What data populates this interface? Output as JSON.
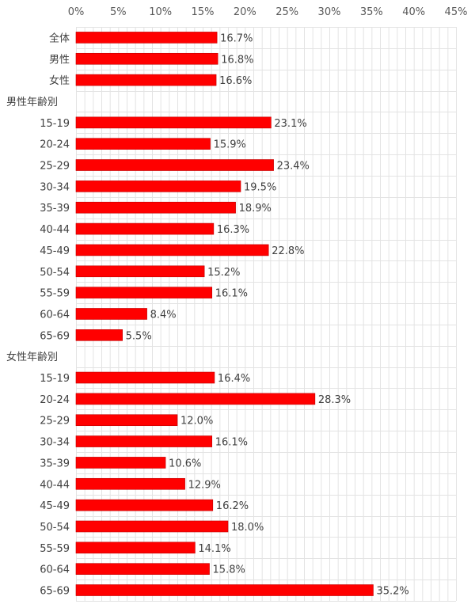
{
  "chart_data": {
    "type": "bar",
    "orientation": "horizontal",
    "categories": [
      "全体",
      "男性",
      "女性",
      "男性年齢別",
      "15-19",
      "20-24",
      "25-29",
      "30-34",
      "35-39",
      "40-44",
      "45-49",
      "50-54",
      "55-59",
      "60-64",
      "65-69",
      "女性年齢別",
      "15-19",
      "20-24",
      "25-29",
      "30-34",
      "35-39",
      "40-44",
      "45-49",
      "50-54",
      "55-59",
      "60-64",
      "65-69"
    ],
    "values": [
      16.7,
      16.8,
      16.6,
      null,
      23.1,
      15.9,
      23.4,
      19.5,
      18.9,
      16.3,
      22.8,
      15.2,
      16.1,
      8.4,
      5.5,
      null,
      16.4,
      28.3,
      12.0,
      16.1,
      10.6,
      12.9,
      16.2,
      18.0,
      14.1,
      15.8,
      35.2
    ],
    "data_labels": [
      "16.7%",
      "16.8%",
      "16.6%",
      "",
      "23.1%",
      "15.9%",
      "23.4%",
      "19.5%",
      "18.9%",
      "16.3%",
      "22.8%",
      "15.2%",
      "16.1%",
      "8.4%",
      "5.5%",
      "",
      "16.4%",
      "28.3%",
      "12.0%",
      "16.1%",
      "10.6%",
      "12.9%",
      "16.2%",
      "18.0%",
      "14.1%",
      "15.8%",
      "35.2%"
    ],
    "xlim": [
      0,
      45
    ],
    "x_ticks": [
      0,
      5,
      10,
      15,
      20,
      25,
      30,
      35,
      40,
      45
    ],
    "x_tick_labels": [
      "0%",
      "5%",
      "10%",
      "15%",
      "20%",
      "25%",
      "30%",
      "35%",
      "40%",
      "45%"
    ],
    "x_axis_position": "top",
    "grid": true,
    "title": "",
    "xlabel": "",
    "ylabel": "",
    "bar_color": "#ff0000",
    "bar_edge_color": "#c00000",
    "grid_color": "#e3e3e3"
  }
}
